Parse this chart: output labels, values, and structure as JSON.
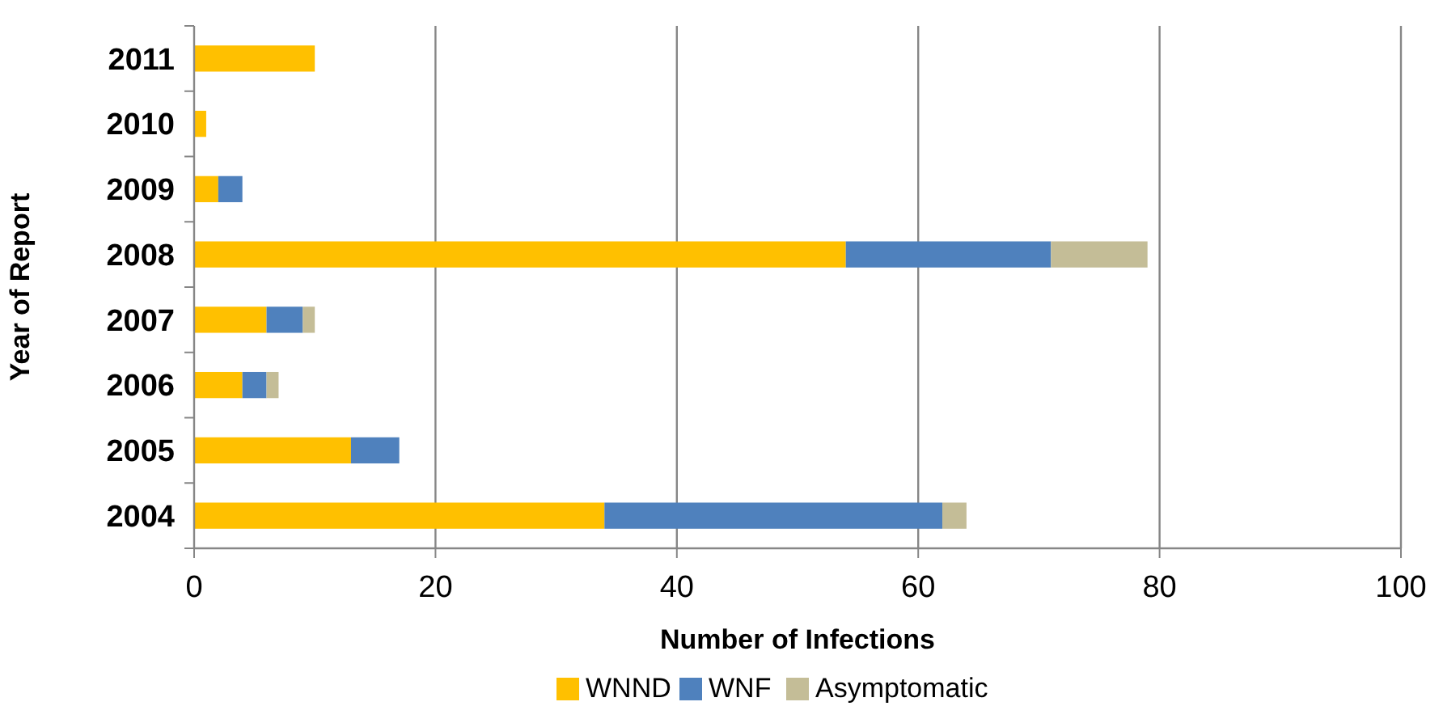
{
  "chart_data": {
    "type": "bar",
    "orientation": "horizontal",
    "stacked": true,
    "xlabel": "Number of Infections",
    "ylabel": "Year of Report",
    "categories": [
      "2011",
      "2010",
      "2009",
      "2008",
      "2007",
      "2006",
      "2005",
      "2004"
    ],
    "series": [
      {
        "name": "WNND",
        "color": "#ffc000",
        "values": [
          10,
          1,
          2,
          54,
          6,
          4,
          13,
          34
        ]
      },
      {
        "name": "WNF",
        "color": "#4f81bd",
        "values": [
          0,
          0,
          2,
          17,
          3,
          2,
          4,
          28
        ]
      },
      {
        "name": "Asymptomatic",
        "color": "#c4bd97",
        "values": [
          0,
          0,
          0,
          8,
          1,
          1,
          0,
          2
        ]
      }
    ],
    "xlim": [
      0,
      100
    ],
    "xticks": [
      0,
      20,
      40,
      60,
      80,
      100
    ],
    "grid": "x",
    "legend": "bottom"
  }
}
